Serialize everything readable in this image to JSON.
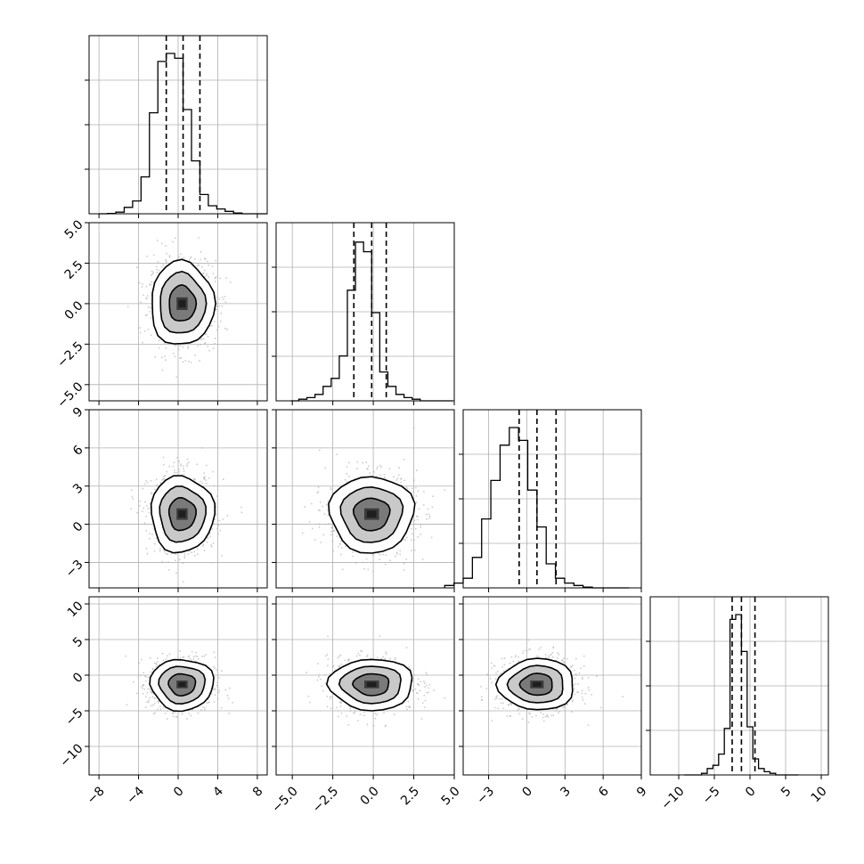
{
  "chart_data": {
    "type": "corner",
    "title": "",
    "variables": 4,
    "grid": true,
    "histogram_bins": 20,
    "contour_levels": [
      0.393,
      0.865,
      0.989
    ],
    "quantiles": [
      0.16,
      0.5,
      0.84
    ],
    "axes": {
      "x": [
        {
          "range": [
            -9,
            9
          ],
          "ticks": [
            -8,
            -4,
            0,
            4,
            8
          ],
          "tick_labels": [
            "−8",
            "−4",
            "0",
            "4",
            "8"
          ]
        },
        {
          "range": [
            -6,
            5
          ],
          "ticks": [
            -5.0,
            -2.5,
            0.0,
            2.5,
            5.0
          ],
          "tick_labels": [
            "−5.0",
            "−2.5",
            "0.0",
            "2.5",
            "5.0"
          ]
        },
        {
          "range": [
            -5,
            9
          ],
          "ticks": [
            -3,
            0,
            3,
            6,
            9
          ],
          "tick_labels": [
            "−3",
            "0",
            "3",
            "6",
            "9"
          ]
        },
        {
          "range": [
            -14,
            11
          ],
          "ticks": [
            -10,
            -5,
            0,
            5,
            10
          ],
          "tick_labels": [
            "−10",
            "−5",
            "0",
            "5",
            "10"
          ]
        }
      ],
      "y": [
        null,
        {
          "range": [
            -6,
            5
          ],
          "ticks": [
            -5.0,
            -2.5,
            0.0,
            2.5,
            5.0
          ],
          "tick_labels": [
            "−5.0",
            "−2.5",
            "0.0",
            "2.5",
            "5.0"
          ]
        },
        {
          "range": [
            -5,
            9
          ],
          "ticks": [
            -3,
            0,
            3,
            6,
            9
          ],
          "tick_labels": [
            "−3",
            "0",
            "3",
            "6",
            "9"
          ]
        },
        {
          "range": [
            -14,
            11
          ],
          "ticks": [
            -10,
            -5,
            0,
            5,
            10
          ],
          "tick_labels": [
            "−10",
            "−5",
            "0",
            "5",
            "10"
          ]
        }
      ]
    },
    "marginals": [
      {
        "variable": 0,
        "quantile_values": [
          -1.2,
          0.5,
          2.2
        ],
        "hist_heights": [
          0,
          0.002,
          0.01,
          0.04,
          0.08,
          0.23,
          0.63,
          0.95,
          1.0,
          0.97,
          0.65,
          0.33,
          0.12,
          0.05,
          0.03,
          0.015,
          0.005,
          0,
          0,
          0
        ]
      },
      {
        "variable": 1,
        "quantile_values": [
          -1.2,
          -0.1,
          0.8
        ],
        "hist_heights": [
          0,
          0.01,
          0.02,
          0.04,
          0.09,
          0.14,
          0.28,
          0.69,
          0.99,
          0.93,
          0.55,
          0.18,
          0.09,
          0.04,
          0.02,
          0.01,
          0,
          0,
          0,
          0
        ]
      },
      {
        "variable": 2,
        "quantile_values": [
          -0.6,
          0.8,
          2.3
        ],
        "hist_heights": [
          0.015,
          0.03,
          0.06,
          0.19,
          0.43,
          0.67,
          0.89,
          1.0,
          0.92,
          0.61,
          0.38,
          0.15,
          0.06,
          0.03,
          0.015,
          0.005,
          0,
          0,
          0,
          0
        ]
      },
      {
        "variable": 3,
        "quantile_values": [
          -2.5,
          -1.2,
          0.7
        ],
        "hist_heights": [
          0,
          0,
          0,
          0.01,
          0.04,
          0.06,
          0.13,
          0.29,
          0.97,
          1.0,
          0.77,
          0.3,
          0.1,
          0.04,
          0.02,
          0.01,
          0,
          0,
          0,
          0
        ]
      }
    ],
    "pairs": [
      {
        "x_var": 0,
        "y_var": 1,
        "center": [
          0.4,
          0.0
        ],
        "spread": [
          1.6,
          1.3
        ]
      },
      {
        "x_var": 0,
        "y_var": 2,
        "center": [
          0.4,
          0.8
        ],
        "spread": [
          1.6,
          1.5
        ]
      },
      {
        "x_var": 1,
        "y_var": 2,
        "center": [
          -0.1,
          0.8
        ],
        "spread": [
          1.3,
          1.5
        ]
      },
      {
        "x_var": 0,
        "y_var": 3,
        "center": [
          0.4,
          -1.3
        ],
        "spread": [
          1.6,
          1.8
        ]
      },
      {
        "x_var": 1,
        "y_var": 3,
        "center": [
          -0.1,
          -1.3
        ],
        "spread": [
          1.3,
          1.8
        ]
      },
      {
        "x_var": 2,
        "y_var": 3,
        "center": [
          0.8,
          -1.3
        ],
        "spread": [
          1.5,
          1.8
        ]
      }
    ],
    "colors": {
      "contour": "#000000",
      "scatter": "#b8b8b8",
      "grid": "#b0b0b0",
      "density": "#1e1e1e"
    }
  }
}
